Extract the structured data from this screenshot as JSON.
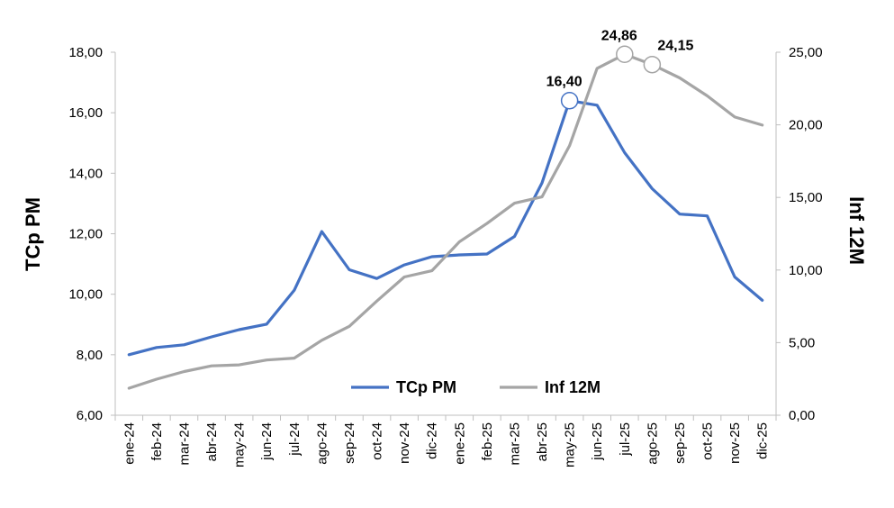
{
  "chart_data": {
    "type": "line",
    "categories": [
      "ene-24",
      "feb-24",
      "mar-24",
      "abr-24",
      "may-24",
      "jun-24",
      "jul-24",
      "ago-24",
      "sep-24",
      "oct-24",
      "nov-24",
      "dic-24",
      "ene-25",
      "feb-25",
      "mar-25",
      "abr-25",
      "may-25",
      "jun-25",
      "jul-25",
      "ago-25",
      "sep-25",
      "oct-25",
      "nov-25",
      "dic-25"
    ],
    "series": [
      {
        "name": "TCp PM",
        "axis": "left",
        "color": "#4472C4",
        "values": [
          8.0,
          8.24,
          8.33,
          8.59,
          8.83,
          9.01,
          10.13,
          12.07,
          10.81,
          10.52,
          10.97,
          11.24,
          11.3,
          11.33,
          11.91,
          13.68,
          16.4,
          16.25,
          14.68,
          13.49,
          12.65,
          12.59,
          10.57,
          9.8
        ],
        "labels": {
          "16": "16,40"
        }
      },
      {
        "name": "Inf 12M",
        "axis": "right",
        "color": "#A5A5A5",
        "values": [
          1.86,
          2.48,
          3.01,
          3.4,
          3.47,
          3.8,
          3.93,
          5.16,
          6.12,
          7.86,
          9.52,
          9.95,
          11.95,
          13.21,
          14.6,
          15.04,
          18.56,
          23.89,
          24.86,
          24.15,
          23.23,
          22.0,
          20.54,
          19.98
        ],
        "labels": {
          "18": "24,86",
          "19": "24,15"
        }
      }
    ],
    "y_left": {
      "label": "TCp PM",
      "min": 6,
      "max": 18,
      "ticks": [
        "6,00",
        "8,00",
        "10,00",
        "12,00",
        "14,00",
        "16,00",
        "18,00"
      ]
    },
    "y_right": {
      "label": "Inf 12M",
      "min": 0,
      "max": 25,
      "ticks": [
        "0,00",
        "5,00",
        "10,00",
        "15,00",
        "20,00",
        "25,00"
      ]
    },
    "grid": false,
    "legend_position": "bottom-center-inside"
  }
}
